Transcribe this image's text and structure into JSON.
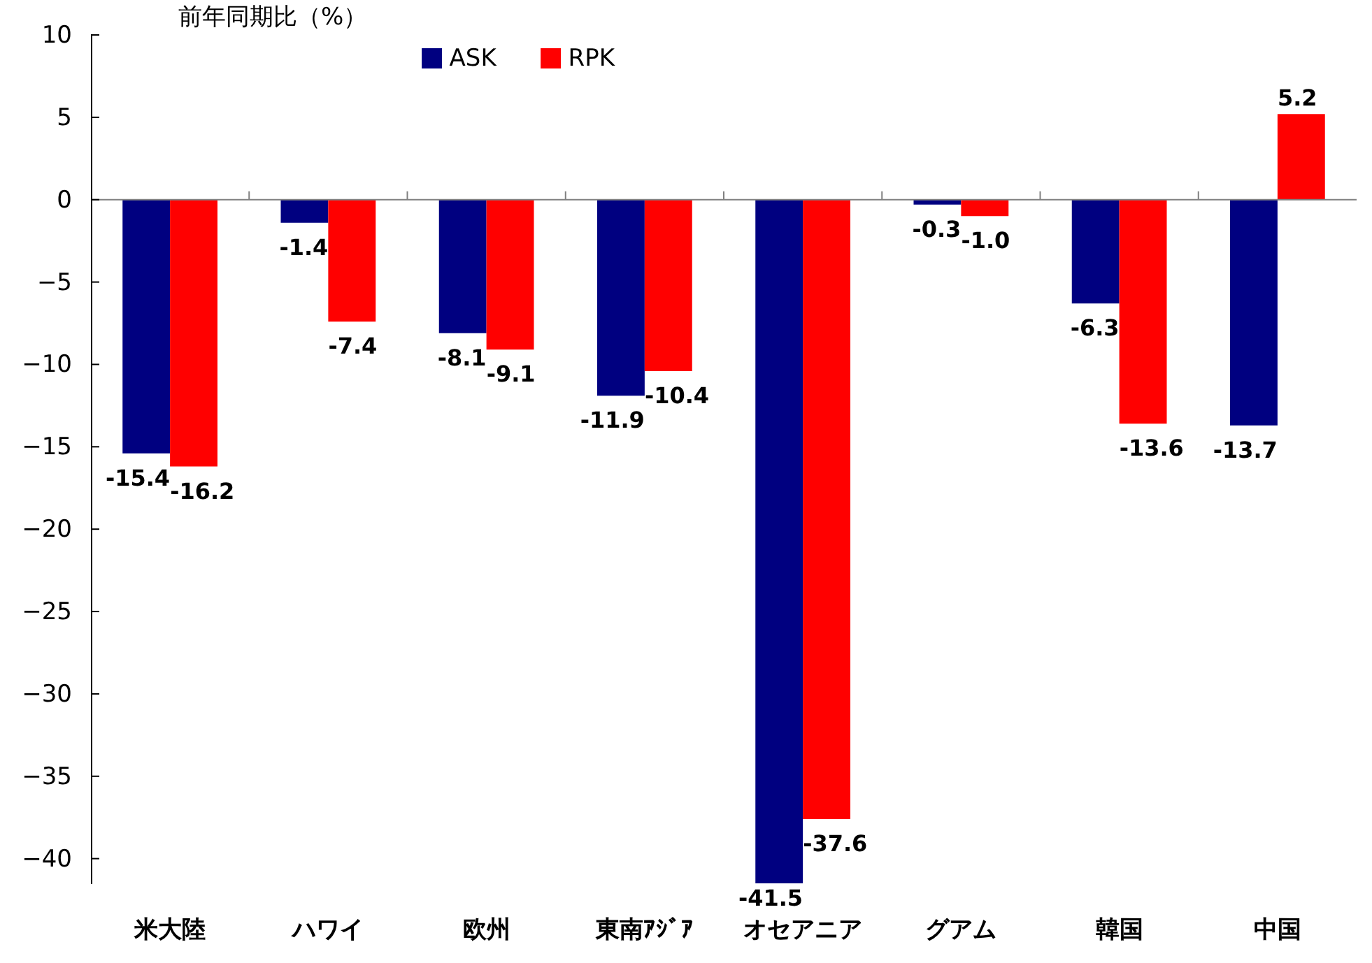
{
  "chart_data": {
    "type": "bar",
    "ylabel": "前年同期比（%）",
    "categories": [
      "米大陸",
      "ハワイ",
      "欧州",
      "東南ｱｼﾞｱ",
      "オセアニア",
      "グアム",
      "韓国",
      "中国"
    ],
    "series": [
      {
        "name": "ASK",
        "color": "#000080",
        "values": [
          -15.4,
          -1.4,
          -8.1,
          -11.9,
          -41.5,
          -0.3,
          -6.3,
          -13.7
        ],
        "value_labels": [
          "-15.4",
          "-1.4",
          "-8.1",
          "-11.9",
          "-41.5",
          "-0.3",
          "-6.3",
          "-13.7"
        ]
      },
      {
        "name": "RPK",
        "color": "#ff0000",
        "values": [
          -16.2,
          -7.4,
          -9.1,
          -10.4,
          -37.6,
          -1.0,
          -13.6,
          5.2
        ],
        "value_labels": [
          "-16.2",
          "-7.4",
          "-9.1",
          "-10.4",
          "-37.6",
          "-1.0",
          "-13.6",
          "5.2"
        ]
      }
    ],
    "ylim": [
      -41.5,
      10
    ],
    "yticks": [
      -40,
      -35,
      -30,
      -25,
      -20,
      -15,
      -10,
      -5,
      0,
      5,
      10
    ],
    "legend": "top"
  }
}
